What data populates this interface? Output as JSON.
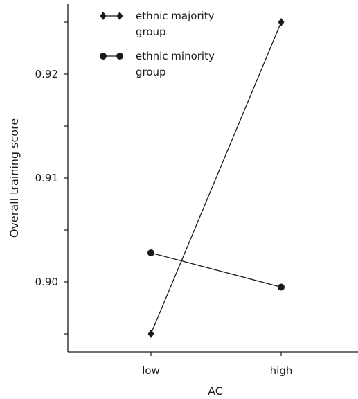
{
  "chart_data": {
    "type": "line",
    "title": "",
    "xlabel": "AC",
    "ylabel": "Overall training score",
    "categories": [
      "low",
      "high"
    ],
    "ylim": [
      0.895,
      0.926
    ],
    "yticks": [
      0.9,
      0.91,
      0.92
    ],
    "ytick_labels": [
      "0.90",
      "0.91",
      "0.92"
    ],
    "grid": false,
    "legend_position": "top-left",
    "series": [
      {
        "name": "ethnic majority\ngroup",
        "marker": "diamond",
        "values": [
          0.895,
          0.925
        ]
      },
      {
        "name": "ethnic minority\ngroup",
        "marker": "circle",
        "values": [
          0.9028,
          0.8995
        ]
      }
    ],
    "line_color": "#1a1a1a"
  }
}
